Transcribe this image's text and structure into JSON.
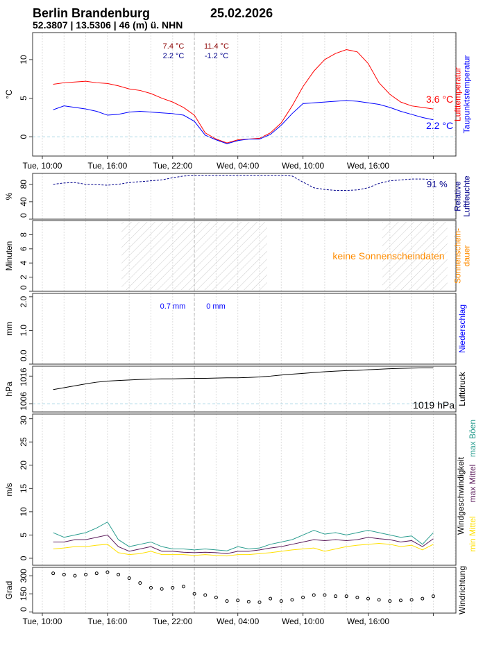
{
  "header": {
    "station": "Berlin Brandenburg",
    "date": "25.02.2026",
    "coords": "52.3807 | 13.5306 | 46 (m) ü. NHN"
  },
  "x_labels": [
    "Tue, 10:00",
    "Tue, 16:00",
    "Tue, 22:00",
    "Wed, 04:00",
    "Wed, 10:00",
    "Wed, 16:00"
  ],
  "colors": {
    "temp": "#ff0000",
    "dew": "#0000ff",
    "hum": "#00008b",
    "sun": "#ff8c00",
    "gust": "#2a9d8f",
    "mean_max": "#5a1a5a",
    "mean_min": "#ffe000",
    "temp_ann": "#8b0000",
    "dew_ann": "#00008b"
  },
  "chart_data": [
    {
      "type": "line",
      "panel": "temperature",
      "ylabel": "°C",
      "yticks": [
        "0",
        "5",
        "10"
      ],
      "ylim": [
        -2.5,
        13.5
      ],
      "x_hours_from_tue_00": [
        11,
        12,
        13,
        14,
        15,
        16,
        17,
        18,
        19,
        20,
        21,
        22,
        23,
        24,
        25,
        26,
        27,
        28,
        29,
        30,
        31,
        32,
        33,
        34,
        35,
        36,
        37,
        38,
        39,
        40,
        41,
        42,
        43,
        44,
        45,
        46
      ],
      "series": [
        {
          "name": "Lufttemperatur",
          "values": [
            6.8,
            7.0,
            7.1,
            7.2,
            7.0,
            6.9,
            6.6,
            6.2,
            6.0,
            5.6,
            5.0,
            4.5,
            3.8,
            2.8,
            0.5,
            -0.3,
            -0.8,
            -0.4,
            -0.3,
            -0.2,
            0.5,
            1.8,
            4.0,
            6.5,
            8.5,
            10.0,
            10.8,
            11.3,
            11.0,
            9.5,
            7.0,
            5.5,
            4.5,
            4.0,
            3.8,
            3.6
          ]
        },
        {
          "name": "Taupunktstemperatur",
          "values": [
            3.5,
            4.0,
            3.8,
            3.6,
            3.3,
            2.8,
            2.9,
            3.2,
            3.3,
            3.2,
            3.1,
            3.0,
            2.8,
            2.0,
            0.2,
            -0.4,
            -0.9,
            -0.5,
            -0.3,
            -0.3,
            0.3,
            1.5,
            3.0,
            4.3,
            4.4,
            4.5,
            4.6,
            4.7,
            4.6,
            4.4,
            4.2,
            3.8,
            3.3,
            2.9,
            2.5,
            2.2
          ]
        }
      ],
      "annotations": {
        "tmin_day1": "7.4 °C",
        "dmin_day1": "2.2 °C",
        "tmax_day2": "11.4 °C",
        "dmin_day2": "-1.2 °C",
        "temp_now": "3.6 °C",
        "dew_now": "2.2 °C"
      },
      "legend": [
        "Lufttemperatur",
        "Taupunktstemperatur"
      ]
    },
    {
      "type": "line",
      "panel": "humidity",
      "ylabel": "%",
      "yticks": [
        "0",
        "40",
        "80"
      ],
      "ylim": [
        0,
        105
      ],
      "values": [
        80,
        83,
        84,
        80,
        79,
        78,
        80,
        84,
        86,
        88,
        90,
        95,
        99,
        100,
        100,
        100,
        100,
        100,
        100,
        100,
        100,
        100,
        99,
        85,
        72,
        68,
        66,
        66,
        67,
        72,
        82,
        88,
        90,
        92,
        92,
        91
      ],
      "annotation": "91 %",
      "legend": [
        "Relative",
        "Luftfeuchte"
      ]
    },
    {
      "type": "area",
      "panel": "sunshine",
      "ylabel": "Minuten",
      "yticks": [
        "0",
        "2",
        "4",
        "6",
        "8"
      ],
      "ylim": [
        0,
        10
      ],
      "night_hatch_hours": [
        [
          17.3,
          30.7
        ],
        [
          41.3,
          47.3
        ]
      ],
      "annotation": "keine Sonnenscheindaten",
      "legend": [
        "Sonnenschein-",
        "dauer"
      ]
    },
    {
      "type": "bar",
      "panel": "precipitation",
      "ylabel": "mm",
      "yticks": [
        "0.0",
        "1.0",
        "2.0"
      ],
      "ylim": [
        0,
        2.1
      ],
      "annotations": {
        "day1": "0.7 mm",
        "day2": "0 mm"
      },
      "legend": [
        "Niederschlag"
      ]
    },
    {
      "type": "line",
      "panel": "pressure",
      "ylabel": "hPa",
      "yticks": [
        "1006",
        "1016"
      ],
      "ylim": [
        1003,
        1019.6
      ],
      "reference": 1006,
      "values": [
        1011.1,
        1011.8,
        1012.5,
        1013.2,
        1013.8,
        1014.2,
        1014.4,
        1014.6,
        1014.8,
        1014.9,
        1015.0,
        1015.0,
        1015.1,
        1015.2,
        1015.2,
        1015.3,
        1015.4,
        1015.4,
        1015.5,
        1015.7,
        1016.0,
        1016.4,
        1016.7,
        1017.0,
        1017.3,
        1017.6,
        1017.8,
        1018.0,
        1018.1,
        1018.3,
        1018.5,
        1018.7,
        1018.8,
        1018.9,
        1019.0,
        1019.0
      ],
      "annotation": "1019 hPa",
      "legend": [
        "Luftdruck"
      ]
    },
    {
      "type": "line",
      "panel": "wind",
      "ylabel": "m/s",
      "yticks": [
        "0",
        "5",
        "10",
        "15",
        "20",
        "25",
        "30"
      ],
      "ylim": [
        -1.5,
        31
      ],
      "series": [
        {
          "name": "max Böen",
          "values": [
            5.5,
            4.5,
            5.0,
            5.5,
            6.5,
            7.8,
            4.0,
            2.5,
            3.0,
            3.5,
            2.5,
            2.0,
            2.0,
            1.8,
            2.0,
            1.8,
            1.6,
            2.5,
            2.0,
            2.2,
            3.0,
            3.5,
            4.0,
            5.0,
            6.0,
            5.2,
            5.5,
            5.0,
            5.5,
            6.0,
            5.5,
            5.0,
            4.5,
            4.8,
            3.0,
            5.5
          ]
        },
        {
          "name": "max Mittel",
          "values": [
            3.5,
            3.5,
            4.0,
            4.0,
            4.5,
            5.0,
            2.5,
            1.5,
            2.0,
            2.5,
            1.5,
            1.5,
            1.3,
            1.2,
            1.3,
            1.2,
            1.0,
            1.5,
            1.5,
            1.8,
            2.2,
            2.5,
            3.0,
            3.5,
            4.0,
            3.8,
            4.0,
            3.8,
            4.0,
            4.5,
            4.2,
            4.0,
            3.5,
            3.8,
            2.5,
            4.2
          ]
        },
        {
          "name": "min Mittel",
          "values": [
            2.0,
            2.2,
            2.5,
            2.5,
            2.8,
            3.0,
            1.2,
            0.8,
            1.0,
            1.5,
            0.8,
            0.8,
            0.8,
            0.6,
            0.8,
            0.6,
            0.5,
            0.8,
            0.8,
            1.0,
            1.2,
            1.5,
            1.8,
            2.0,
            2.2,
            1.5,
            2.0,
            2.5,
            2.8,
            3.0,
            3.2,
            3.0,
            2.5,
            2.8,
            1.8,
            3.0
          ]
        }
      ],
      "legend": [
        "Windgeschwindigkeit",
        "max Böen",
        "max Mittel",
        "min Mittel"
      ]
    },
    {
      "type": "scatter",
      "panel": "wind_direction",
      "ylabel": "Grad",
      "yticks": [
        "0",
        "150",
        "300"
      ],
      "ylim": [
        -10,
        370
      ],
      "values": [
        320,
        310,
        300,
        310,
        320,
        330,
        310,
        280,
        240,
        200,
        190,
        200,
        210,
        150,
        140,
        120,
        90,
        95,
        85,
        80,
        110,
        90,
        100,
        120,
        140,
        140,
        130,
        130,
        120,
        110,
        100,
        90,
        95,
        100,
        110,
        130
      ],
      "legend": [
        "Windrichtung"
      ]
    }
  ]
}
